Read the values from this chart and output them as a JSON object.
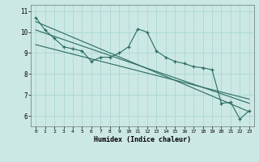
{
  "xlabel": "Humidex (Indice chaleur)",
  "bg_color": "#cce8e4",
  "grid_color": "#aad8d4",
  "line_color": "#2a6b62",
  "xlim": [
    -0.5,
    23.5
  ],
  "ylim": [
    5.5,
    11.3
  ],
  "xticks": [
    0,
    1,
    2,
    3,
    4,
    5,
    6,
    7,
    8,
    9,
    10,
    11,
    12,
    13,
    14,
    15,
    16,
    17,
    18,
    19,
    20,
    21,
    22,
    23
  ],
  "yticks": [
    6,
    7,
    8,
    9,
    10,
    11
  ],
  "series1_x": [
    0,
    1,
    2,
    3,
    4,
    5,
    6,
    7,
    8,
    9,
    10,
    11,
    12,
    13,
    14,
    15,
    16,
    17,
    18,
    19,
    20,
    21,
    22,
    23
  ],
  "series1_y": [
    10.7,
    10.1,
    9.7,
    9.3,
    9.2,
    9.1,
    8.6,
    8.8,
    8.8,
    9.0,
    9.3,
    10.15,
    10.0,
    9.1,
    8.8,
    8.6,
    8.5,
    8.35,
    8.3,
    8.2,
    6.6,
    6.65,
    5.85,
    6.25
  ],
  "series2_x": [
    0,
    23
  ],
  "series2_y": [
    10.5,
    6.2
  ],
  "series3_x": [
    0,
    23
  ],
  "series3_y": [
    10.1,
    6.6
  ],
  "series4_x": [
    0,
    23
  ],
  "series4_y": [
    9.4,
    6.8
  ]
}
